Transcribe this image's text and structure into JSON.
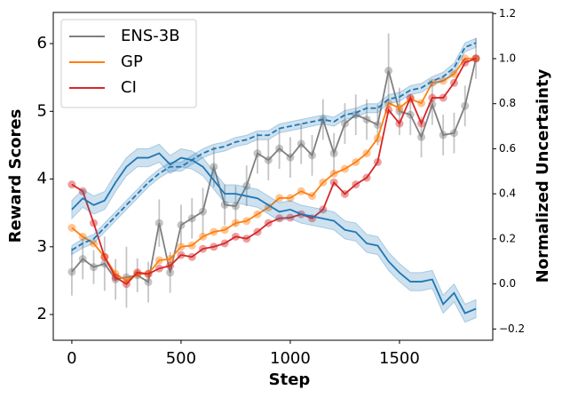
{
  "chart_data": {
    "type": "line",
    "xlabel": "Step",
    "ylabel": "Reward Scores",
    "y2label": "Normalized Uncertainty",
    "x": [
      0,
      50,
      100,
      150,
      200,
      250,
      300,
      350,
      400,
      450,
      500,
      550,
      600,
      650,
      700,
      750,
      800,
      850,
      900,
      950,
      1000,
      1050,
      1100,
      1150,
      1200,
      1250,
      1300,
      1350,
      1400,
      1450,
      1500,
      1550,
      1600,
      1650,
      1700,
      1750,
      1800,
      1850
    ],
    "xlim": [
      -85,
      1927
    ],
    "xticks": [
      0,
      500,
      1000,
      1500
    ],
    "ylim": [
      1.62,
      6.46
    ],
    "yticks": [
      2,
      3,
      4,
      5,
      6
    ],
    "y2lim": [
      -0.25,
      1.205
    ],
    "y2ticks": [
      {
        "value": -0.2,
        "label": "−0.2"
      },
      {
        "value": 0,
        "label": "0.0"
      },
      0.2,
      0.4,
      0.6,
      0.8,
      {
        "value": 1,
        "label": "1.0"
      },
      1.2
    ],
    "legend": "upper left",
    "series": [
      {
        "name": "ENS-3B",
        "color": "#7f7f7f",
        "markers": true,
        "values": [
          2.63,
          2.82,
          2.7,
          2.75,
          2.52,
          2.55,
          2.58,
          2.48,
          3.35,
          2.62,
          3.32,
          3.42,
          3.52,
          4.18,
          3.62,
          3.6,
          3.9,
          4.38,
          4.28,
          4.45,
          4.32,
          4.52,
          4.35,
          4.88,
          4.38,
          4.82,
          4.95,
          4.88,
          4.8,
          5.6,
          5.0,
          4.95,
          4.62,
          5.1,
          4.65,
          4.68,
          5.08,
          5.78
        ],
        "errors": [
          0.35,
          0.3,
          0.25,
          0.4,
          0.3,
          0.45,
          0.25,
          0.3,
          0.35,
          0.3,
          0.3,
          0.3,
          0.35,
          0.3,
          0.3,
          0.3,
          0.3,
          0.3,
          0.3,
          0.3,
          0.3,
          0.3,
          0.3,
          0.3,
          0.3,
          0.3,
          0.3,
          0.3,
          0.3,
          0.55,
          0.35,
          0.3,
          0.3,
          0.3,
          0.3,
          0.3,
          0.3,
          0.3
        ]
      },
      {
        "name": "GP",
        "color": "#ff7f0e",
        "markers": true,
        "values": [
          3.28,
          3.15,
          3.05,
          2.85,
          2.6,
          2.5,
          2.6,
          2.6,
          2.8,
          2.82,
          3.0,
          3.02,
          3.15,
          3.22,
          3.25,
          3.35,
          3.38,
          3.48,
          3.58,
          3.72,
          3.72,
          3.82,
          3.75,
          3.95,
          4.08,
          4.15,
          4.25,
          4.38,
          4.6,
          5.12,
          5.05,
          5.18,
          5.12,
          5.42,
          5.45,
          5.55,
          5.78,
          5.78
        ]
      },
      {
        "name": "CI",
        "color": "#d62728",
        "markers": true,
        "values": [
          3.92,
          3.82,
          3.35,
          2.85,
          2.55,
          2.45,
          2.62,
          2.6,
          2.68,
          2.72,
          2.88,
          2.85,
          2.97,
          3.0,
          3.05,
          3.15,
          3.12,
          3.22,
          3.35,
          3.42,
          3.43,
          3.48,
          3.42,
          3.55,
          3.95,
          3.78,
          3.92,
          4.02,
          4.25,
          5.02,
          4.82,
          5.2,
          4.82,
          5.2,
          5.2,
          5.42,
          5.72,
          5.78
        ]
      },
      {
        "color": "#1f77b4",
        "axis": "y2",
        "band": 0.04,
        "values": [
          0.33,
          0.38,
          0.35,
          0.37,
          0.45,
          0.52,
          0.56,
          0.56,
          0.58,
          0.53,
          0.56,
          0.55,
          0.52,
          0.46,
          0.4,
          0.4,
          0.39,
          0.38,
          0.35,
          0.32,
          0.33,
          0.31,
          0.3,
          0.29,
          0.28,
          0.24,
          0.23,
          0.18,
          0.17,
          0.1,
          0.05,
          0.01,
          0.01,
          0.02,
          -0.09,
          -0.04,
          -0.13,
          -0.11
        ]
      },
      {
        "color": "#1f77b4",
        "axis": "y2",
        "band": 0.02,
        "dashed": true,
        "values": [
          0.15,
          0.18,
          0.2,
          0.25,
          0.3,
          0.35,
          0.4,
          0.45,
          0.49,
          0.52,
          0.52,
          0.55,
          0.58,
          0.6,
          0.61,
          0.63,
          0.64,
          0.66,
          0.66,
          0.69,
          0.7,
          0.71,
          0.72,
          0.73,
          0.72,
          0.75,
          0.76,
          0.78,
          0.78,
          0.82,
          0.83,
          0.86,
          0.87,
          0.9,
          0.92,
          0.96,
          1.05,
          1.07
        ]
      }
    ]
  }
}
